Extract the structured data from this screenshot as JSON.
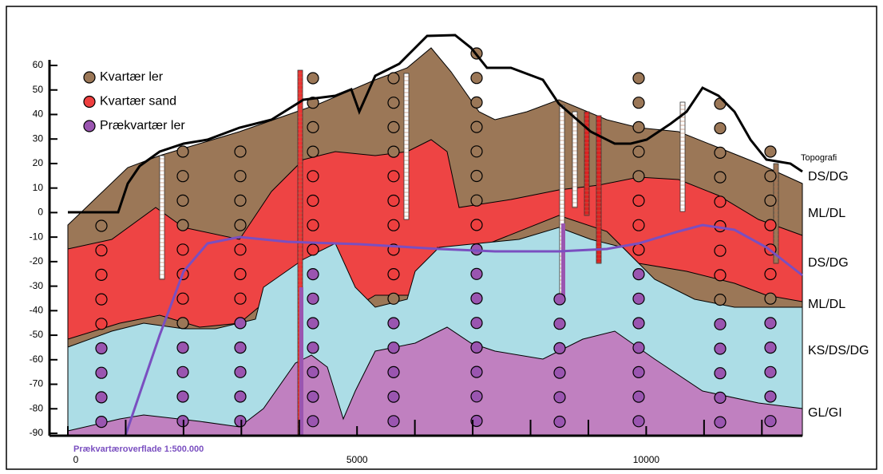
{
  "chart_data": {
    "type": "cross-section",
    "ylim": [
      -91,
      62
    ],
    "yticks": [
      60,
      50,
      40,
      30,
      20,
      10,
      0,
      -10,
      -20,
      -30,
      -40,
      -50,
      -60,
      -70,
      -80,
      -90
    ],
    "xlim": [
      0,
      12700
    ],
    "xticks": [
      0,
      5000,
      10000
    ],
    "xminorticks": [
      1000,
      2000,
      3000,
      4000,
      6000,
      7000,
      8000,
      9000,
      11000,
      12000
    ],
    "legend": [
      {
        "name": "Kvartær ler",
        "color": "#9b7757"
      },
      {
        "name": "Kvartær sand",
        "color": "#ee3f3f"
      },
      {
        "name": "Prækvartær ler",
        "color": "#9a55b0"
      }
    ],
    "topography_label": "Topografi",
    "layer_labels": [
      "DS/DG",
      "ML/DL",
      "DS/DG",
      "ML/DL",
      "KS/DS/DG",
      "GL/GI"
    ],
    "annotation": "Prækvartæroverflade 1:500.000"
  }
}
